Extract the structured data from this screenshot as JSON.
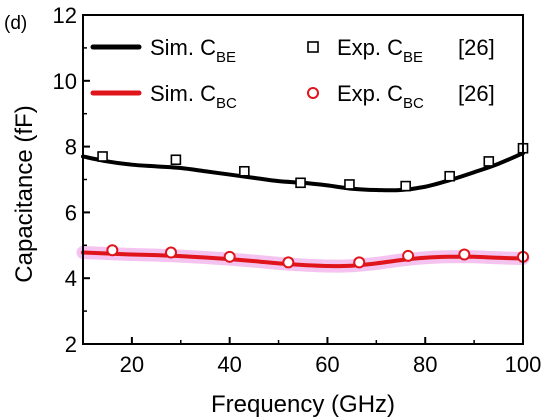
{
  "panel_label": "(d)",
  "chart_data": {
    "type": "line",
    "xlabel": "Frequency (GHz)",
    "ylabel": "Capacitance (fF)",
    "xlim": [
      10,
      100
    ],
    "ylim": [
      2,
      12
    ],
    "xticks": [
      20,
      40,
      60,
      80,
      100
    ],
    "yticks": [
      2,
      4,
      6,
      8,
      10,
      12
    ],
    "legend": {
      "placement": "top",
      "entries": [
        {
          "text": "Sim. C",
          "sub": "BE",
          "ref": "",
          "series": "sim_be"
        },
        {
          "text": "Exp. C",
          "sub": "BE",
          "ref": "[26]",
          "series": "exp_be"
        },
        {
          "text": "Sim. C",
          "sub": "BC",
          "ref": "",
          "series": "sim_bc"
        },
        {
          "text": "Exp. C",
          "sub": "BC",
          "ref": "[26]",
          "series": "exp_bc"
        }
      ]
    },
    "series": [
      {
        "id": "sim_be",
        "kind": "line",
        "color": "#000000",
        "x": [
          10,
          15,
          20,
          25,
          30,
          35,
          40,
          45,
          50,
          55,
          60,
          65,
          70,
          75,
          80,
          85,
          90,
          95,
          100
        ],
        "y": [
          7.7,
          7.55,
          7.45,
          7.4,
          7.35,
          7.25,
          7.15,
          7.05,
          6.95,
          6.9,
          6.82,
          6.72,
          6.68,
          6.68,
          6.78,
          6.98,
          7.22,
          7.48,
          7.8
        ]
      },
      {
        "id": "exp_be",
        "kind": "markers",
        "marker": "square",
        "color": "#000000",
        "x": [
          14,
          29,
          43,
          54.5,
          64.5,
          76,
          85,
          93,
          100
        ],
        "y": [
          7.7,
          7.6,
          7.25,
          6.9,
          6.85,
          6.8,
          7.1,
          7.55,
          7.95
        ]
      },
      {
        "id": "sim_bc",
        "kind": "line",
        "color": "#e0141b",
        "halo": "#f2b8ec",
        "x": [
          10,
          15,
          20,
          25,
          30,
          35,
          40,
          45,
          50,
          55,
          60,
          65,
          70,
          75,
          80,
          85,
          90,
          95,
          100
        ],
        "y": [
          4.78,
          4.75,
          4.72,
          4.7,
          4.67,
          4.63,
          4.58,
          4.52,
          4.45,
          4.4,
          4.37,
          4.38,
          4.45,
          4.55,
          4.62,
          4.65,
          4.65,
          4.62,
          4.6
        ]
      },
      {
        "id": "exp_bc",
        "kind": "markers",
        "marker": "circle",
        "color": "#e0141b",
        "x": [
          16,
          28,
          40,
          52,
          66.5,
          76.5,
          88,
          100
        ],
        "y": [
          4.85,
          4.78,
          4.65,
          4.48,
          4.48,
          4.68,
          4.72,
          4.65
        ]
      }
    ]
  }
}
